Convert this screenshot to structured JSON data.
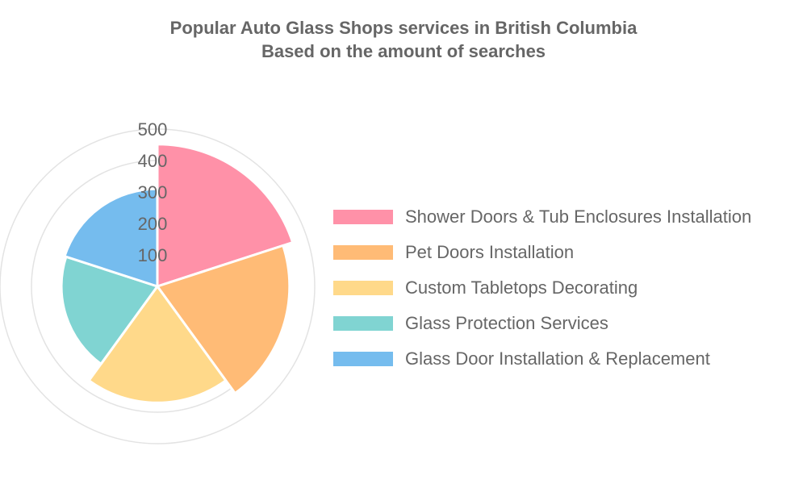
{
  "chart_data": {
    "type": "polar-area",
    "title_lines": [
      "Popular Auto Glass Shops services in British Columbia",
      "Based on the amount of searches"
    ],
    "categories": [
      "Shower Doors & Tub Enclosures Installation",
      "Pet Doors Installation",
      "Custom Tabletops Decorating",
      "Glass Protection Services",
      "Glass Door Installation & Replacement"
    ],
    "values": [
      452,
      420,
      370,
      305,
      310
    ],
    "colors": [
      "#ff91a8",
      "#ffbb76",
      "#ffd98a",
      "#80d4d2",
      "#75bcee"
    ],
    "r_ticks": [
      100,
      200,
      300,
      400,
      500
    ],
    "r_max": 500,
    "legend_position": "right",
    "grid": true
  }
}
